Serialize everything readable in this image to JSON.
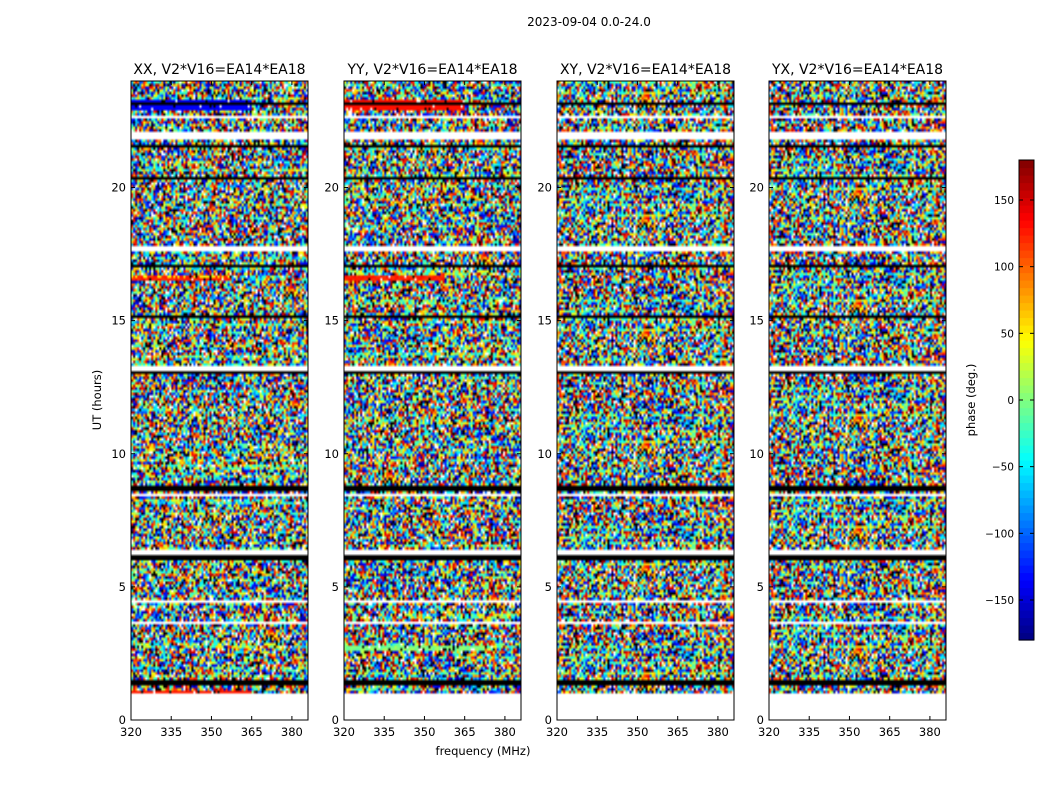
{
  "figure": {
    "suptitle": "2023-09-04 0.0-24.0"
  },
  "chart_data": {
    "type": "heatmap",
    "xlabel": "frequency (MHz)",
    "ylabel": "UT (hours)",
    "xlim": [
      320,
      386
    ],
    "ylim": [
      0,
      24
    ],
    "xticks": [
      "320",
      "335",
      "350",
      "365",
      "380"
    ],
    "yticks": [
      "0",
      "5",
      "10",
      "15",
      "20"
    ],
    "panels": [
      {
        "title": "XX, V2*V16=EA14*EA18",
        "polarization": "XX"
      },
      {
        "title": "YY, V2*V16=EA14*EA18",
        "polarization": "YY"
      },
      {
        "title": "XY, V2*V16=EA14*EA18",
        "polarization": "XY"
      },
      {
        "title": "YX, V2*V16=EA14*EA18",
        "polarization": "YX"
      }
    ],
    "colorbar": {
      "label": "phase (deg.)",
      "range": [
        -180,
        180
      ],
      "ticks": [
        "150",
        "100",
        "50",
        "0",
        "−50",
        "−100",
        "−150"
      ],
      "colormap": "jet"
    },
    "coverage_hours": [
      1.0,
      24.0
    ],
    "blank_ut_ranges": [
      [
        0.0,
        1.0
      ],
      [
        13.1,
        13.3
      ],
      [
        21.8,
        22.1
      ],
      [
        22.6,
        22.7
      ],
      [
        17.6,
        17.8
      ],
      [
        6.2,
        6.35
      ],
      [
        3.6,
        3.7
      ],
      [
        4.4,
        4.5
      ],
      [
        8.4,
        8.5
      ]
    ],
    "flagged_ut_ranges": [
      [
        1.3,
        1.45
      ],
      [
        6.0,
        6.2
      ],
      [
        8.6,
        8.85
      ],
      [
        13.0,
        13.1
      ],
      [
        15.1,
        15.2
      ],
      [
        17.0,
        17.1
      ],
      [
        20.3,
        20.4
      ],
      [
        21.5,
        21.6
      ],
      [
        23.1,
        23.2
      ]
    ]
  }
}
